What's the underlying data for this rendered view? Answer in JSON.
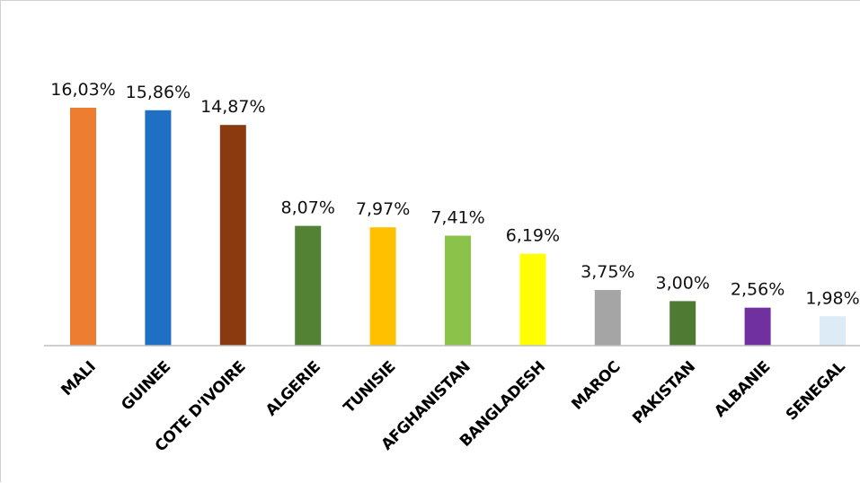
{
  "chart_data": {
    "type": "bar",
    "title": "",
    "xlabel": "",
    "ylabel": "",
    "ylim": [
      0,
      16.03
    ],
    "grid": false,
    "legend": "none",
    "categories": [
      "MALI",
      "GUINEE",
      "COTE D'IVOIRE",
      "ALGERIE",
      "TUNISIE",
      "AFGHANISTAN",
      "BANGLADESH",
      "MAROC",
      "PAKISTAN",
      "ALBANIE",
      "SENEGAL"
    ],
    "values": [
      16.03,
      15.86,
      14.87,
      8.07,
      7.97,
      7.41,
      6.19,
      3.75,
      3.0,
      2.56,
      1.98
    ],
    "labels": [
      "16,03%",
      "15,86%",
      "14,87%",
      "8,07%",
      "7,97%",
      "7,41%",
      "6,19%",
      "3,75%",
      "3,00%",
      "2,56%",
      "1,98%"
    ],
    "colors": [
      "#ED7D31",
      "#1F6FC5",
      "#8B3A0F",
      "#548235",
      "#FFC000",
      "#8BC34A",
      "#FFFF00",
      "#A5A5A5",
      "#4E7A33",
      "#7030A0",
      "#DDEBF7"
    ],
    "axis_color": "#BFBFBF"
  }
}
